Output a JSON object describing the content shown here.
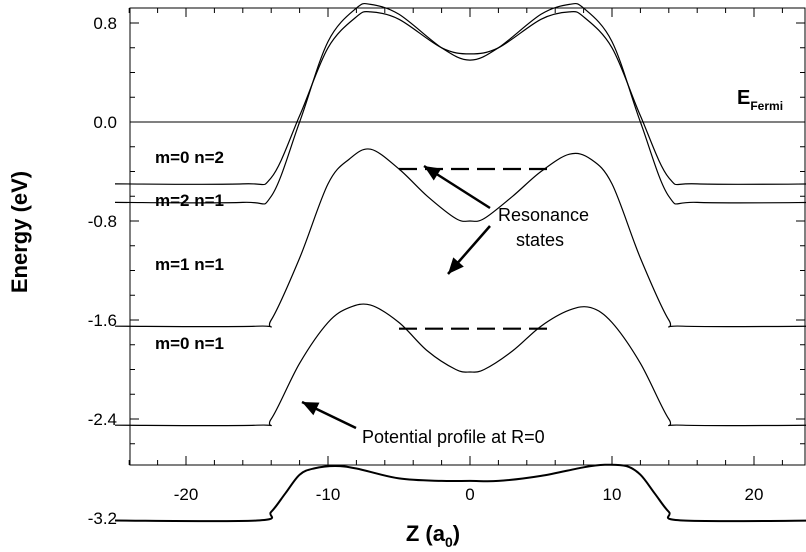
{
  "chart_data": {
    "type": "line",
    "title": "",
    "xlabel": "Z (a",
    "xlabel_sub": "0",
    "xlabel_close": ")",
    "ylabel": "Energy (eV)",
    "xlim": [
      -25,
      25
    ],
    "ylim": [
      -3.6,
      1.1
    ],
    "x_ticks": [
      -20,
      -10,
      0,
      10,
      20
    ],
    "x_tick_labels": [
      "-20",
      "-10",
      "0",
      "10",
      "20"
    ],
    "y_ticks": [
      0.8,
      0.0,
      -0.8,
      -1.6,
      -2.4,
      -3.2
    ],
    "y_tick_labels": [
      "0.8",
      "0.0",
      "-0.8",
      "-1.6",
      "-2.4",
      "-3.2"
    ],
    "grid": false,
    "fermi_level": {
      "y": 0.0,
      "label_main": "E",
      "label_sub": "Fermi"
    },
    "series": [
      {
        "name": "m=0 n=2",
        "x": [
          -25,
          -16,
          -14,
          -12,
          -10,
          -8,
          -7,
          -5,
          -2,
          0,
          2,
          5,
          7,
          8,
          10,
          12,
          14,
          16,
          25
        ],
        "y": [
          -0.5,
          -0.5,
          -0.45,
          0.05,
          0.6,
          0.85,
          0.89,
          0.83,
          0.6,
          0.55,
          0.6,
          0.83,
          0.89,
          0.85,
          0.6,
          0.05,
          -0.45,
          -0.5,
          -0.5
        ]
      },
      {
        "name": "m=2 n=1",
        "x": [
          -25,
          -16,
          -14,
          -12,
          -10,
          -8,
          -7,
          -5,
          -2,
          0,
          2,
          5,
          7,
          8,
          10,
          12,
          14,
          16,
          25
        ],
        "y": [
          -0.65,
          -0.65,
          -0.6,
          0.0,
          0.65,
          0.92,
          0.95,
          0.87,
          0.6,
          0.5,
          0.6,
          0.87,
          0.95,
          0.92,
          0.65,
          0.0,
          -0.6,
          -0.65,
          -0.65
        ]
      },
      {
        "name": "m=1 n=1",
        "x": [
          -25,
          -15,
          -14,
          -12,
          -10,
          -8.5,
          -7,
          -5,
          -3,
          -1,
          0,
          1,
          3,
          5,
          7,
          8.5,
          10,
          12,
          14,
          15,
          25
        ],
        "y": [
          -1.65,
          -1.65,
          -1.6,
          -1.1,
          -0.5,
          -0.3,
          -0.22,
          -0.38,
          -0.6,
          -0.78,
          -0.8,
          -0.78,
          -0.6,
          -0.4,
          -0.26,
          -0.3,
          -0.5,
          -1.1,
          -1.6,
          -1.65,
          -1.65
        ]
      },
      {
        "name": "m=0 n=1",
        "x": [
          -25,
          -15,
          -14,
          -12,
          -10,
          -8.5,
          -7,
          -5,
          -3,
          -1,
          0,
          1,
          3,
          5,
          7,
          8.5,
          10,
          12,
          14,
          15,
          25
        ],
        "y": [
          -2.45,
          -2.45,
          -2.4,
          -1.95,
          -1.62,
          -1.5,
          -1.48,
          -1.62,
          -1.85,
          -2.0,
          -2.02,
          -2.0,
          -1.85,
          -1.65,
          -1.52,
          -1.5,
          -1.62,
          -1.95,
          -2.4,
          -2.45,
          -2.45
        ]
      },
      {
        "name": "Potential profile at R=0",
        "x": [
          -25,
          -15,
          -14,
          -13,
          -12,
          -11,
          -9.5,
          -8,
          -5,
          -2,
          0,
          2,
          5,
          8,
          9.5,
          11,
          12,
          13,
          14,
          15,
          25
        ],
        "y": [
          -3.22,
          -3.22,
          -3.15,
          -3.0,
          -2.85,
          -2.8,
          -2.78,
          -2.8,
          -2.88,
          -2.9,
          -2.9,
          -2.9,
          -2.86,
          -2.79,
          -2.77,
          -2.78,
          -2.85,
          -3.0,
          -3.15,
          -3.22,
          -3.22
        ]
      }
    ],
    "resonance_lines": [
      {
        "y": -0.38,
        "x_start": -5,
        "x_end": 5.5
      },
      {
        "y": -1.67,
        "x_start": -5,
        "x_end": 5.5
      }
    ],
    "annotations": {
      "resonance_line1": "Resonance",
      "resonance_line2": "states",
      "potential": "Potential profile at R=0"
    }
  }
}
